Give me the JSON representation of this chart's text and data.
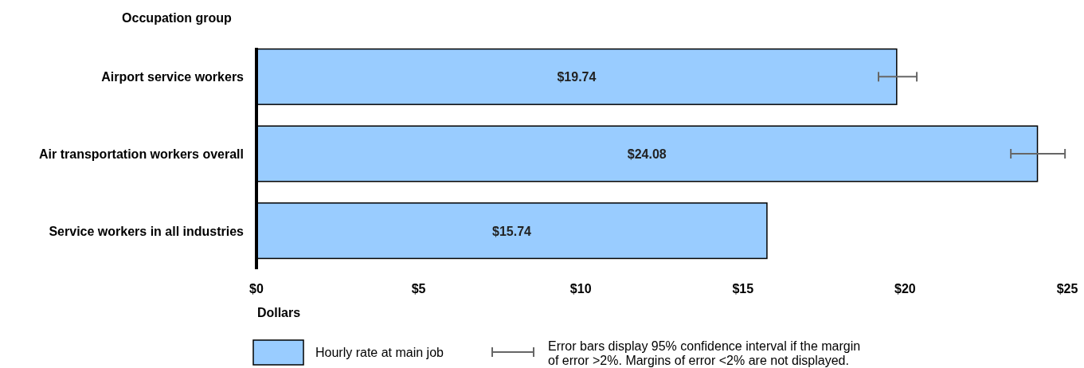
{
  "chart_data": {
    "type": "bar",
    "orientation": "horizontal",
    "ylabel": "Occupation group",
    "xlabel": "Dollars",
    "categories": [
      "Airport service workers",
      "Air transportation workers overall",
      "Service workers in all industries"
    ],
    "series": [
      {
        "name": "Hourly rate at main job",
        "color": "#99ccff",
        "values": [
          19.74,
          24.08,
          15.74
        ],
        "value_labels": [
          "$19.74",
          "$24.08",
          "$15.74"
        ],
        "errors": [
          [
            19.18,
            20.36
          ],
          [
            23.26,
            24.93
          ],
          null
        ]
      }
    ],
    "xlim": [
      0,
      25
    ],
    "xticks": [
      {
        "value": 0,
        "label": "$0"
      },
      {
        "value": 5,
        "label": "$5"
      },
      {
        "value": 10,
        "label": "$10"
      },
      {
        "value": 15,
        "label": "$15"
      },
      {
        "value": 20,
        "label": "$20"
      },
      {
        "value": 25,
        "label": "$25"
      }
    ],
    "grid": false,
    "legend": "bottom",
    "annotations": [
      "Error bars display 95% confidence interval if the margin of error >2%. Margins of error <2% are not displayed."
    ]
  }
}
